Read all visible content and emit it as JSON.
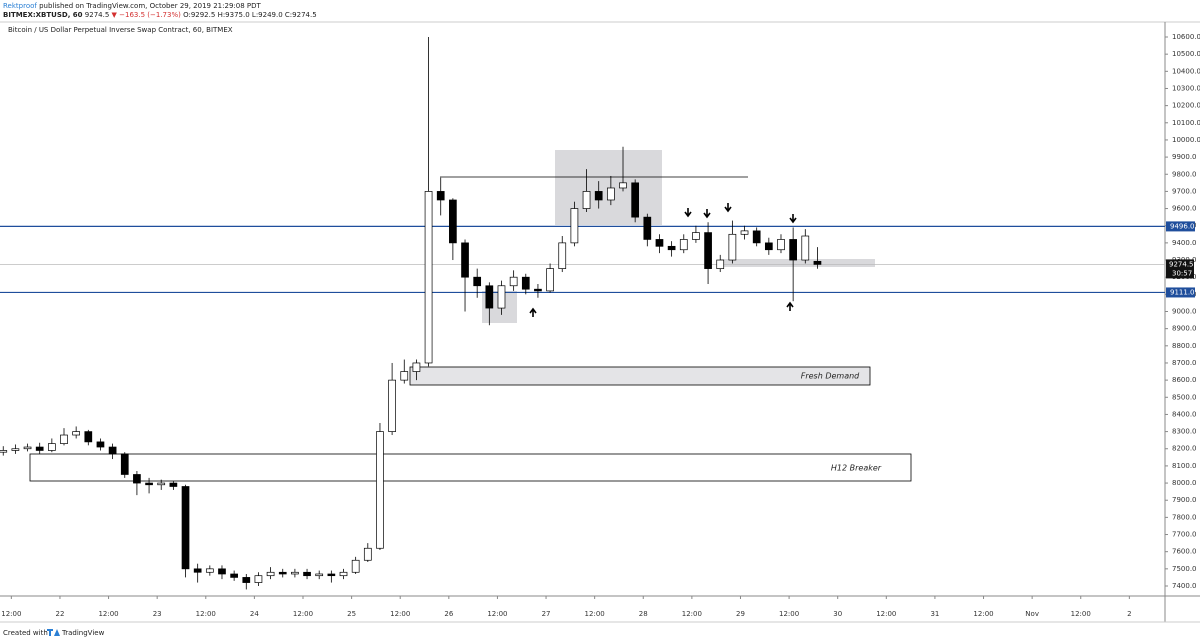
{
  "header": {
    "publisher": "Rektproof",
    "published": "published on TradingView.com, October 29, 2019 21:29:08 PDT",
    "symbol": "BITMEX:XBTUSD, 60",
    "last": "9274.5",
    "direction": "▼",
    "change": "−163.5 (−1.73%)",
    "open": "O:9292.5",
    "high": "H:9375.0",
    "low": "L:9249.0",
    "close": "C:9274.5"
  },
  "footer": {
    "created": "Created with",
    "brand": "TradingView"
  },
  "chart_data": {
    "type": "candlestick",
    "title": "Bitcoin / US Dollar Perpetual Inverse Swap Contract, 60, BITMEX",
    "up_color": "#ffffff",
    "down_color": "#000000",
    "outline_color": "#000000",
    "x": [
      10,
      13,
      16,
      19,
      22,
      25,
      28,
      31,
      34,
      37,
      40,
      43,
      46,
      49,
      52,
      55,
      58,
      61,
      64,
      67,
      70,
      73,
      76,
      79,
      82,
      85,
      88,
      91,
      94,
      97,
      100,
      103,
      106,
      109,
      112,
      115,
      118,
      121,
      124,
      127,
      130,
      133,
      136,
      139,
      142,
      145,
      148,
      151,
      154,
      157,
      160,
      163,
      166,
      169,
      172,
      175,
      178,
      181,
      184,
      187,
      190,
      193,
      196,
      199,
      202,
      205,
      208,
      211
    ],
    "open": [
      8180,
      8190,
      8200,
      8210,
      8190,
      8230,
      8280,
      8300,
      8240,
      8210,
      8170,
      8050,
      8000,
      7990,
      8000,
      7980,
      7500,
      7480,
      7500,
      7470,
      7450,
      7420,
      7460,
      7480,
      7470,
      7480,
      7460,
      7470,
      7460,
      7480,
      7550,
      7620,
      8300,
      8600,
      8650,
      8700,
      9700,
      9650,
      9400,
      9200,
      9150,
      9020,
      9150,
      9200,
      9130,
      9120,
      9250,
      9400,
      9600,
      9700,
      9650,
      9720,
      9750,
      9550,
      9420,
      9380,
      9360,
      9420,
      9460,
      9250,
      9300,
      9450,
      9470,
      9400,
      9360,
      9420,
      9300,
      9292.5
    ],
    "high": [
      8215,
      8225,
      8230,
      8235,
      8260,
      8320,
      8330,
      8310,
      8260,
      8230,
      8180,
      8070,
      8030,
      8020,
      8010,
      7990,
      7530,
      7520,
      7520,
      7490,
      7470,
      7480,
      7510,
      7500,
      7500,
      7500,
      7490,
      7490,
      7500,
      7570,
      7650,
      8350,
      8700,
      8720,
      8720,
      10600,
      9780,
      9660,
      9420,
      9250,
      9170,
      9180,
      9240,
      9220,
      9160,
      9280,
      9440,
      9640,
      9830,
      9760,
      9790,
      9960,
      9770,
      9570,
      9450,
      9410,
      9450,
      9500,
      9520,
      9330,
      9530,
      9500,
      9490,
      9430,
      9450,
      9490,
      9480,
      9375
    ],
    "low": [
      8160,
      8170,
      8185,
      8170,
      8180,
      8220,
      8260,
      8220,
      8190,
      8140,
      8030,
      7930,
      7940,
      7960,
      7960,
      7450,
      7420,
      7460,
      7440,
      7430,
      7380,
      7400,
      7440,
      7450,
      7450,
      7440,
      7440,
      7420,
      7440,
      7470,
      7540,
      7610,
      8280,
      8580,
      8600,
      8680,
      9560,
      9300,
      9000,
      9080,
      8920,
      8980,
      9120,
      9100,
      9080,
      9110,
      9230,
      9380,
      9580,
      9600,
      9620,
      9700,
      9520,
      9380,
      9340,
      9320,
      9340,
      9400,
      9160,
      9230,
      9280,
      9420,
      9380,
      9330,
      9340,
      9060,
      9280,
      9249
    ],
    "close": [
      8190,
      8200,
      8210,
      8190,
      8230,
      8280,
      8300,
      8240,
      8210,
      8170,
      8050,
      8000,
      7990,
      8000,
      7980,
      7500,
      7480,
      7500,
      7470,
      7450,
      7420,
      7460,
      7480,
      7470,
      7480,
      7460,
      7470,
      7460,
      7480,
      7550,
      7620,
      8300,
      8600,
      8650,
      8700,
      9700,
      9650,
      9400,
      9200,
      9150,
      9020,
      9150,
      9200,
      9130,
      9120,
      9250,
      9400,
      9600,
      9700,
      9650,
      9720,
      9750,
      9550,
      9420,
      9380,
      9360,
      9420,
      9460,
      9250,
      9300,
      9450,
      9470,
      9400,
      9360,
      9420,
      9300,
      9440,
      9274.5
    ],
    "xlim": [
      9.2,
      296.8
    ],
    "xticks": [
      {
        "value": 12,
        "label": "12:00"
      },
      {
        "value": 24,
        "label": "22"
      },
      {
        "value": 36,
        "label": "12:00"
      },
      {
        "value": 48,
        "label": "23"
      },
      {
        "value": 60,
        "label": "12:00"
      },
      {
        "value": 72,
        "label": "24"
      },
      {
        "value": 84,
        "label": "12:00"
      },
      {
        "value": 96,
        "label": "25"
      },
      {
        "value": 108,
        "label": "12:00"
      },
      {
        "value": 120,
        "label": "26"
      },
      {
        "value": 132,
        "label": "12:00"
      },
      {
        "value": 144,
        "label": "27"
      },
      {
        "value": 156,
        "label": "12:00"
      },
      {
        "value": 168,
        "label": "28"
      },
      {
        "value": 180,
        "label": "12:00"
      },
      {
        "value": 192,
        "label": "29"
      },
      {
        "value": 204,
        "label": "12:00"
      },
      {
        "value": 216,
        "label": "30"
      },
      {
        "value": 228,
        "label": "12:00"
      },
      {
        "value": 240,
        "label": "31"
      },
      {
        "value": 252,
        "label": "12:00"
      },
      {
        "value": 264,
        "label": "Nov"
      },
      {
        "value": 276,
        "label": "12:00"
      },
      {
        "value": 288,
        "label": "2"
      }
    ],
    "ylim": [
      7341.7,
      10675.8
    ],
    "yticks": [
      {
        "value": 7400,
        "label": "7400.0"
      },
      {
        "value": 7500,
        "label": "7500.0"
      },
      {
        "value": 7600,
        "label": "7600.0"
      },
      {
        "value": 7700,
        "label": "7700.0"
      },
      {
        "value": 7800,
        "label": "7800.0"
      },
      {
        "value": 7900,
        "label": "7900.0"
      },
      {
        "value": 8000,
        "label": "8000.0"
      },
      {
        "value": 8100,
        "label": "8100.0"
      },
      {
        "value": 8200,
        "label": "8200.0"
      },
      {
        "value": 8300,
        "label": "8300.0"
      },
      {
        "value": 8400,
        "label": "8400.0"
      },
      {
        "value": 8500,
        "label": "8500.0"
      },
      {
        "value": 8600,
        "label": "8600.0"
      },
      {
        "value": 8700,
        "label": "8700.0"
      },
      {
        "value": 8800,
        "label": "8800.0"
      },
      {
        "value": 8900,
        "label": "8900.0"
      },
      {
        "value": 9000,
        "label": "9000.0"
      },
      {
        "value": 9100,
        "label": "9100.0"
      },
      {
        "value": 9200,
        "label": "9200.0"
      },
      {
        "value": 9300,
        "label": "9300.0"
      },
      {
        "value": 9400,
        "label": "9400.0"
      },
      {
        "value": 9500,
        "label": "9500.0"
      },
      {
        "value": 9600,
        "label": "9600.0"
      },
      {
        "value": 9700,
        "label": "9700.0"
      },
      {
        "value": 9800,
        "label": "9800.0"
      },
      {
        "value": 9900,
        "label": "9900.0"
      },
      {
        "value": 10000,
        "label": "10000.0"
      },
      {
        "value": 10100,
        "label": "10100.0"
      },
      {
        "value": 10200,
        "label": "10200.0"
      },
      {
        "value": 10300,
        "label": "10300.0"
      },
      {
        "value": 10400,
        "label": "10400.0"
      },
      {
        "value": 10500,
        "label": "10500.0"
      },
      {
        "value": 10600,
        "label": "10600.0"
      }
    ],
    "levels": [
      {
        "value": 9496,
        "label": "9496.0",
        "color": "#1f4e9c"
      },
      {
        "value": 9111,
        "label": "9111.0",
        "color": "#1f4e9c"
      }
    ],
    "last_price": {
      "value": 9274.5,
      "label": "9274.5",
      "countdown": "30:57"
    },
    "annotations": [
      "Fresh Demand",
      "H12 Breaker"
    ]
  }
}
